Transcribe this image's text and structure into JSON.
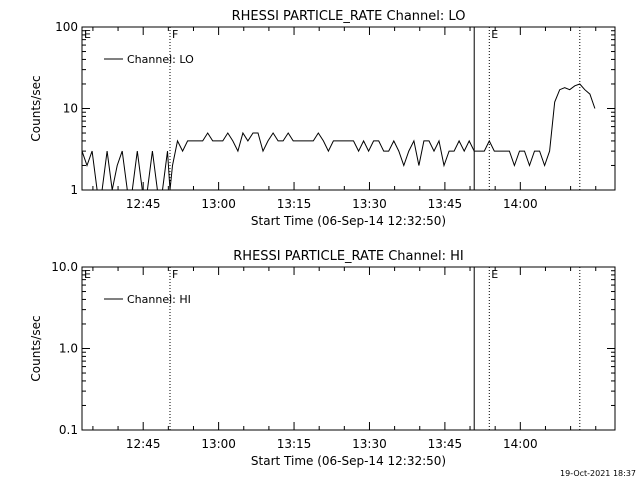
{
  "footer": {
    "timestamp": "19-Oct-2021 18:37"
  },
  "chart_data": [
    {
      "type": "line",
      "title": "RHESSI PARTICLE_RATE Channel: LO",
      "xlabel": "Start Time (06-Sep-14 12:32:50)",
      "ylabel": "Counts/sec",
      "yscale": "log",
      "ylim": [
        1,
        100
      ],
      "y_tick_labels": [
        "1",
        "10",
        "100"
      ],
      "x_tick_labels": [
        "12:45",
        "13:00",
        "13:15",
        "13:30",
        "13:45",
        "14:00"
      ],
      "xlim_minutes_after_start": [
        0,
        106
      ],
      "legend": {
        "placement": "top-left",
        "entries": [
          "Channel: LO"
        ]
      },
      "series": [
        {
          "name": "Channel: LO",
          "x": [
            0,
            1,
            2,
            3,
            4,
            5,
            6,
            7,
            8,
            9,
            10,
            11,
            12,
            13,
            14,
            15,
            16,
            17,
            17.5,
            18,
            19,
            20,
            21,
            22,
            23,
            24,
            25,
            26,
            27,
            28,
            29,
            30,
            31,
            32,
            33,
            34,
            35,
            36,
            37,
            38,
            39,
            40,
            41,
            42,
            43,
            44,
            45,
            46,
            47,
            48,
            49,
            50,
            51,
            52,
            53,
            54,
            55,
            56,
            57,
            58,
            59,
            60,
            61,
            62,
            63,
            64,
            65,
            66,
            67,
            68,
            69,
            70,
            71,
            72,
            73,
            74,
            75,
            76,
            77,
            78,
            79,
            80,
            81,
            82,
            83,
            84,
            85,
            86,
            87,
            88,
            89,
            90,
            91,
            92,
            93,
            94,
            95,
            96,
            97,
            98,
            99,
            100,
            101,
            102
          ],
          "values": [
            3,
            2,
            3,
            1,
            1,
            3,
            1,
            2,
            3,
            1,
            1,
            3,
            1,
            1,
            3,
            1,
            1,
            3,
            1,
            2,
            4,
            3,
            4,
            4,
            4,
            4,
            5,
            4,
            4,
            4,
            5,
            4,
            3,
            5,
            4,
            5,
            5,
            3,
            4,
            5,
            4,
            4,
            5,
            4,
            4,
            4,
            4,
            4,
            5,
            4,
            3,
            4,
            4,
            4,
            4,
            4,
            3,
            4,
            3,
            4,
            4,
            3,
            3,
            4,
            3,
            2,
            3,
            4,
            2,
            4,
            4,
            3,
            4,
            2,
            3,
            3,
            4,
            3,
            4,
            3,
            3,
            3,
            4,
            3,
            3,
            3,
            3,
            2,
            3,
            3,
            2,
            3,
            3,
            2,
            3,
            12,
            17,
            18,
            17,
            19,
            20,
            17,
            15,
            10
          ]
        }
      ],
      "annotations": [
        {
          "label": "E",
          "x": 0,
          "style": "text"
        },
        {
          "label": "F",
          "x": 17.5,
          "style": "dotted"
        },
        {
          "label": "",
          "x": 78,
          "style": "solid"
        },
        {
          "label": "E",
          "x": 81,
          "style": "dotted"
        },
        {
          "label": "",
          "x": 99,
          "style": "dotted"
        }
      ]
    },
    {
      "type": "line",
      "title": "RHESSI PARTICLE_RATE Channel: HI",
      "xlabel": "Start Time (06-Sep-14 12:32:50)",
      "ylabel": "Counts/sec",
      "yscale": "log",
      "ylim": [
        0.1,
        10
      ],
      "y_tick_labels": [
        "0.1",
        "1.0",
        "10.0"
      ],
      "x_tick_labels": [
        "12:45",
        "13:00",
        "13:15",
        "13:30",
        "13:45",
        "14:00"
      ],
      "xlim_minutes_after_start": [
        0,
        106
      ],
      "legend": {
        "placement": "top-left",
        "entries": [
          "Channel: HI"
        ]
      },
      "series": [
        {
          "name": "Channel: HI",
          "x": [],
          "values": []
        }
      ],
      "annotations": [
        {
          "label": "E",
          "x": 0,
          "style": "text"
        },
        {
          "label": "F",
          "x": 17.5,
          "style": "dotted"
        },
        {
          "label": "",
          "x": 78,
          "style": "solid"
        },
        {
          "label": "E",
          "x": 81,
          "style": "dotted"
        },
        {
          "label": "",
          "x": 99,
          "style": "dotted"
        }
      ]
    }
  ]
}
